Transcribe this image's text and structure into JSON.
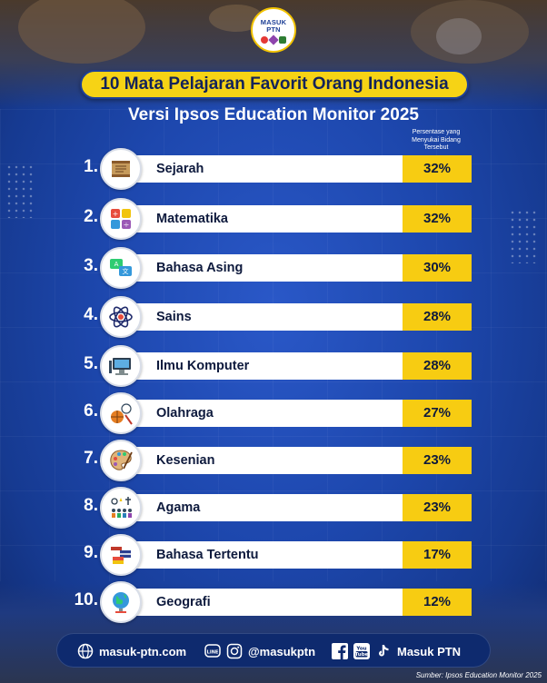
{
  "brand": {
    "logo_text": "MASUK PTN"
  },
  "header": {
    "title": "10 Mata Pelajaran Favorit Orang Indonesia",
    "subtitle": "Versi Ipsos Education Monitor 2025",
    "column_label": "Persentase yang Menyukai Bidang Tersebut"
  },
  "subjects": [
    {
      "rank": "1.",
      "name": "Sejarah",
      "percent": "32%",
      "icon": "scroll-icon"
    },
    {
      "rank": "2.",
      "name": "Matematika",
      "percent": "32%",
      "icon": "math-blocks-icon"
    },
    {
      "rank": "3.",
      "name": "Bahasa Asing",
      "percent": "30%",
      "icon": "language-chat-icon"
    },
    {
      "rank": "4.",
      "name": "Sains",
      "percent": "28%",
      "icon": "atom-icon"
    },
    {
      "rank": "5.",
      "name": "Ilmu Komputer",
      "percent": "28%",
      "icon": "computer-icon"
    },
    {
      "rank": "6.",
      "name": "Olahraga",
      "percent": "27%",
      "icon": "sports-balls-icon"
    },
    {
      "rank": "7.",
      "name": "Kesenian",
      "percent": "23%",
      "icon": "palette-icon"
    },
    {
      "rank": "8.",
      "name": "Agama",
      "percent": "23%",
      "icon": "religion-symbols-icon"
    },
    {
      "rank": "9.",
      "name": "Bahasa Tertentu",
      "percent": "17%",
      "icon": "flags-icon"
    },
    {
      "rank": "10.",
      "name": "Geografi",
      "percent": "12%",
      "icon": "globe-icon"
    }
  ],
  "footer": {
    "website": "masuk-ptn.com",
    "handle": "@masukptn",
    "channel": "Masuk PTN",
    "source": "Sumber: Ipsos Education Monitor 2025"
  },
  "colors": {
    "background": "#1d47ad",
    "accent_yellow": "#f7cc12",
    "bar_white": "#ffffff",
    "text_dark": "#0e1a3d"
  }
}
